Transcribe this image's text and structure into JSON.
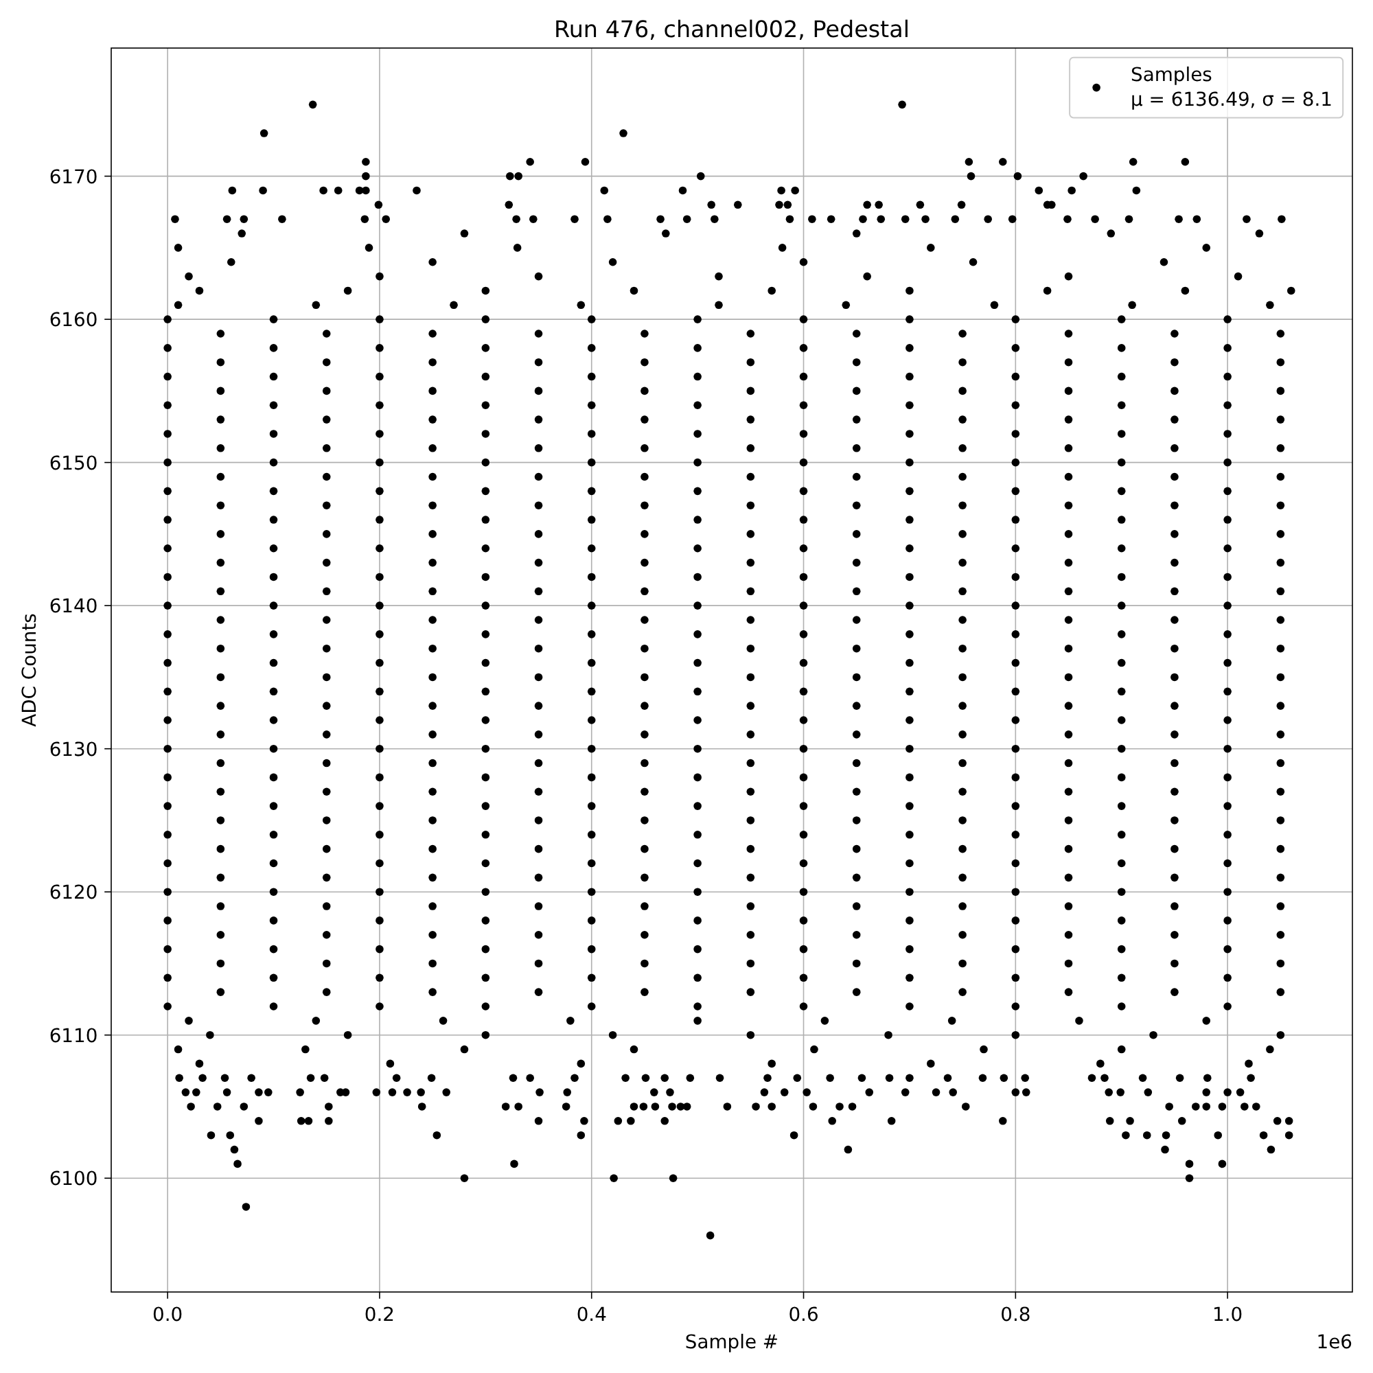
{
  "chart_data": {
    "type": "scatter",
    "title": "Run 476, channel002, Pedestal",
    "xlabel": "Sample #",
    "ylabel": "ADC Counts",
    "annotations": [
      "1e6"
    ],
    "xlim": [
      -0.0532,
      1.1178
    ],
    "ylim": [
      6092.05,
      6178.95
    ],
    "xticks": [
      {
        "value": 0,
        "label": "0.0"
      },
      0.2,
      0.4,
      0.6,
      0.8,
      {
        "value": 1,
        "label": "1.0"
      }
    ],
    "yticks": [
      6100,
      6110,
      6120,
      6130,
      6140,
      6150,
      6160,
      6170
    ],
    "grid": true,
    "legend": "top right",
    "marker": "circle",
    "series": [
      {
        "name": "Samples\nμ = 6136.49, σ = 8.1",
        "color": "#000000",
        "x": [
          0.137,
          0.693,
          0.091,
          0.43,
          0.187,
          0.342,
          0.394,
          0.756,
          0.788,
          0.911,
          0.96,
          0.187,
          0.323,
          0.331,
          0.503,
          0.758,
          0.802,
          0.864,
          0.061,
          0.09,
          0.147,
          0.161,
          0.181,
          0.187,
          0.235,
          0.412,
          0.486,
          0.579,
          0.592,
          0.822,
          0.853,
          0.914,
          0.199,
          0.322,
          0.513,
          0.538,
          0.577,
          0.585,
          0.66,
          0.671,
          0.71,
          0.749,
          0.83,
          0.834,
          0.007,
          0.056,
          0.072,
          0.108,
          0.186,
          0.206,
          0.329,
          0.345,
          0.384,
          0.415,
          0.465,
          0.49,
          0.516,
          0.587,
          0.608,
          0.626,
          0.656,
          0.673,
          0.696,
          0.715,
          0.743,
          0.774,
          0.797,
          0.849,
          0.875,
          0.907,
          0.954,
          0.971,
          1.018,
          1.051,
          0.07,
          0.28,
          0.47,
          0.65,
          0.89,
          1.03,
          0.01,
          0.19,
          0.33,
          0.58,
          0.72,
          0.98,
          0.06,
          0.25,
          0.42,
          0.6,
          0.76,
          0.94,
          0.02,
          0.2,
          0.35,
          0.52,
          0.66,
          0.85,
          1.01,
          0.03,
          0.17,
          0.3,
          0.44,
          0.57,
          0.7,
          0.83,
          0.96,
          1.06,
          0.01,
          0.14,
          0.27,
          0.39,
          0.52,
          0.64,
          0.78,
          0.91,
          1.04,
          0,
          0.1,
          0.2,
          0.3,
          0.4,
          0.5,
          0.6,
          0.7,
          0.8,
          0.9,
          1,
          0.05,
          0.15,
          0.25,
          0.35,
          0.45,
          0.55,
          0.65,
          0.75,
          0.85,
          0.95,
          1.05,
          0,
          0.1,
          0.2,
          0.3,
          0.4,
          0.5,
          0.6,
          0.7,
          0.8,
          0.9,
          1,
          0.05,
          0.15,
          0.25,
          0.35,
          0.45,
          0.55,
          0.65,
          0.75,
          0.85,
          0.95,
          1.05,
          0,
          0.1,
          0.2,
          0.3,
          0.4,
          0.5,
          0.6,
          0.7,
          0.8,
          0.9,
          1,
          0.05,
          0.15,
          0.25,
          0.35,
          0.45,
          0.55,
          0.65,
          0.75,
          0.85,
          0.95,
          1.05,
          0,
          0.1,
          0.2,
          0.3,
          0.4,
          0.5,
          0.6,
          0.7,
          0.8,
          0.9,
          1,
          0.05,
          0.15,
          0.25,
          0.35,
          0.45,
          0.55,
          0.65,
          0.75,
          0.85,
          0.95,
          1.05,
          0,
          0.1,
          0.2,
          0.3,
          0.4,
          0.5,
          0.6,
          0.7,
          0.8,
          0.9,
          1,
          0.05,
          0.15,
          0.25,
          0.35,
          0.45,
          0.55,
          0.65,
          0.75,
          0.85,
          0.95,
          1.05,
          0,
          0.1,
          0.2,
          0.3,
          0.4,
          0.5,
          0.6,
          0.7,
          0.8,
          0.9,
          1,
          0.05,
          0.15,
          0.25,
          0.35,
          0.45,
          0.55,
          0.65,
          0.75,
          0.85,
          0.95,
          1.05,
          0,
          0.1,
          0.2,
          0.3,
          0.4,
          0.5,
          0.6,
          0.7,
          0.8,
          0.9,
          1,
          0.05,
          0.15,
          0.25,
          0.35,
          0.45,
          0.55,
          0.65,
          0.75,
          0.85,
          0.95,
          1.05,
          0,
          0.1,
          0.2,
          0.3,
          0.4,
          0.5,
          0.6,
          0.7,
          0.8,
          0.9,
          1,
          0.05,
          0.15,
          0.25,
          0.35,
          0.45,
          0.55,
          0.65,
          0.75,
          0.85,
          0.95,
          1.05,
          0,
          0.1,
          0.2,
          0.3,
          0.4,
          0.5,
          0.6,
          0.7,
          0.8,
          0.9,
          1,
          0.05,
          0.15,
          0.25,
          0.35,
          0.45,
          0.55,
          0.65,
          0.75,
          0.85,
          0.95,
          1.05,
          0,
          0.1,
          0.2,
          0.3,
          0.4,
          0.5,
          0.6,
          0.7,
          0.8,
          0.9,
          1,
          0.05,
          0.15,
          0.25,
          0.35,
          0.45,
          0.55,
          0.65,
          0.75,
          0.85,
          0.95,
          1.05,
          0,
          0.1,
          0.2,
          0.3,
          0.4,
          0.5,
          0.6,
          0.7,
          0.8,
          0.9,
          1,
          0.05,
          0.15,
          0.25,
          0.35,
          0.45,
          0.55,
          0.65,
          0.75,
          0.85,
          0.95,
          1.05,
          0,
          0.1,
          0.2,
          0.3,
          0.4,
          0.5,
          0.6,
          0.7,
          0.8,
          0.9,
          1,
          0.05,
          0.15,
          0.25,
          0.35,
          0.45,
          0.55,
          0.65,
          0.75,
          0.85,
          0.95,
          1.05,
          0,
          0.1,
          0.2,
          0.3,
          0.4,
          0.5,
          0.6,
          0.7,
          0.8,
          0.9,
          1,
          0.05,
          0.15,
          0.25,
          0.35,
          0.45,
          0.55,
          0.65,
          0.75,
          0.85,
          0.95,
          1.05,
          0,
          0.1,
          0.2,
          0.3,
          0.4,
          0.5,
          0.6,
          0.7,
          0.8,
          0.9,
          1,
          0.05,
          0.15,
          0.25,
          0.35,
          0.45,
          0.55,
          0.65,
          0.75,
          0.85,
          0.95,
          1.05,
          0,
          0.1,
          0.2,
          0.3,
          0.4,
          0.5,
          0.6,
          0.7,
          0.8,
          0.9,
          1,
          0.05,
          0.15,
          0.25,
          0.35,
          0.45,
          0.55,
          0.65,
          0.75,
          0.85,
          0.95,
          1.05,
          0,
          0.1,
          0.2,
          0.3,
          0.4,
          0.5,
          0.6,
          0.7,
          0.8,
          0.9,
          1,
          0.05,
          0.15,
          0.25,
          0.35,
          0.45,
          0.55,
          0.65,
          0.75,
          0.85,
          0.95,
          1.05,
          0,
          0.1,
          0.2,
          0.3,
          0.4,
          0.5,
          0.6,
          0.7,
          0.8,
          0.9,
          1,
          0.05,
          0.15,
          0.25,
          0.35,
          0.45,
          0.55,
          0.65,
          0.75,
          0.85,
          0.95,
          1.05,
          0,
          0.1,
          0.2,
          0.3,
          0.4,
          0.5,
          0.6,
          0.7,
          0.8,
          0.9,
          1,
          0.05,
          0.15,
          0.25,
          0.35,
          0.45,
          0.55,
          0.65,
          0.75,
          0.85,
          0.95,
          1.05,
          0,
          0.1,
          0.2,
          0.3,
          0.4,
          0.5,
          0.6,
          0.7,
          0.8,
          0.9,
          1,
          0.05,
          0.15,
          0.25,
          0.35,
          0.45,
          0.55,
          0.65,
          0.75,
          0.85,
          0.95,
          1.05,
          0,
          0.1,
          0.2,
          0.3,
          0.4,
          0.5,
          0.6,
          0.7,
          0.8,
          0.9,
          1,
          0.05,
          0.15,
          0.25,
          0.35,
          0.45,
          0.55,
          0.65,
          0.75,
          0.85,
          0.95,
          1.05,
          0,
          0.1,
          0.2,
          0.3,
          0.4,
          0.5,
          0.6,
          0.7,
          0.8,
          0.9,
          1,
          0.05,
          0.15,
          0.25,
          0.35,
          0.45,
          0.55,
          0.65,
          0.75,
          0.85,
          0.95,
          1.05,
          0,
          0.1,
          0.2,
          0.3,
          0.4,
          0.5,
          0.6,
          0.7,
          0.8,
          0.9,
          1,
          0.05,
          0.15,
          0.25,
          0.35,
          0.45,
          0.55,
          0.65,
          0.75,
          0.85,
          0.95,
          1.05,
          0,
          0.1,
          0.2,
          0.3,
          0.4,
          0.5,
          0.6,
          0.7,
          0.8,
          0.9,
          1,
          0.05,
          0.15,
          0.25,
          0.35,
          0.45,
          0.55,
          0.65,
          0.75,
          0.85,
          0.95,
          1.05,
          0,
          0.1,
          0.2,
          0.3,
          0.4,
          0.5,
          0.6,
          0.7,
          0.8,
          0.9,
          1,
          0.05,
          0.15,
          0.25,
          0.35,
          0.45,
          0.55,
          0.65,
          0.75,
          0.85,
          0.95,
          1.05,
          0,
          0.1,
          0.2,
          0.3,
          0.4,
          0.5,
          0.6,
          0.7,
          0.8,
          0.9,
          1,
          0.02,
          0.14,
          0.26,
          0.38,
          0.5,
          0.62,
          0.74,
          0.86,
          0.98,
          0.04,
          0.17,
          0.3,
          0.42,
          0.55,
          0.68,
          0.8,
          0.93,
          1.05,
          0.01,
          0.13,
          0.28,
          0.44,
          0.61,
          0.77,
          0.9,
          1.04,
          0.03,
          0.21,
          0.39,
          0.57,
          0.72,
          0.88,
          1.02,
          0.011,
          0.033,
          0.054,
          0.079,
          0.135,
          0.148,
          0.216,
          0.249,
          0.326,
          0.342,
          0.384,
          0.432,
          0.451,
          0.469,
          0.493,
          0.521,
          0.566,
          0.594,
          0.625,
          0.655,
          0.681,
          0.7,
          0.736,
          0.769,
          0.789,
          0.809,
          0.872,
          0.884,
          0.92,
          0.955,
          0.981,
          1.022,
          0.017,
          0.027,
          0.056,
          0.086,
          0.095,
          0.125,
          0.163,
          0.168,
          0.197,
          0.212,
          0.226,
          0.239,
          0.263,
          0.351,
          0.377,
          0.459,
          0.474,
          0.563,
          0.582,
          0.603,
          0.662,
          0.696,
          0.725,
          0.741,
          0.8,
          0.81,
          0.888,
          0.899,
          0.925,
          0.98,
          1,
          1.012,
          0.022,
          0.047,
          0.072,
          0.152,
          0.24,
          0.319,
          0.331,
          0.376,
          0.44,
          0.449,
          0.46,
          0.476,
          0.484,
          0.49,
          0.528,
          0.555,
          0.57,
          0.609,
          0.634,
          0.646,
          0.753,
          0.945,
          0.97,
          0.98,
          0.995,
          1.016,
          1.027,
          0.086,
          0.126,
          0.133,
          0.152,
          0.35,
          0.393,
          0.425,
          0.437,
          0.469,
          0.627,
          0.683,
          0.788,
          0.889,
          0.908,
          0.957,
          1.047,
          1.058,
          0.041,
          0.059,
          0.254,
          0.39,
          0.591,
          0.904,
          0.924,
          0.942,
          0.991,
          1.034,
          1.058,
          0.063,
          0.642,
          0.941,
          1.041,
          0.066,
          0.327,
          0.964,
          0.995,
          0.28,
          0.421,
          0.477,
          0.964,
          0.074,
          0.512
        ],
        "values": [
          6175,
          6175,
          6173,
          6173,
          6171,
          6171,
          6171,
          6171,
          6171,
          6171,
          6171,
          6170,
          6170,
          6170,
          6170,
          6170,
          6170,
          6170,
          6169,
          6169,
          6169,
          6169,
          6169,
          6169,
          6169,
          6169,
          6169,
          6169,
          6169,
          6169,
          6169,
          6169,
          6168,
          6168,
          6168,
          6168,
          6168,
          6168,
          6168,
          6168,
          6168,
          6168,
          6168,
          6168,
          6167,
          6167,
          6167,
          6167,
          6167,
          6167,
          6167,
          6167,
          6167,
          6167,
          6167,
          6167,
          6167,
          6167,
          6167,
          6167,
          6167,
          6167,
          6167,
          6167,
          6167,
          6167,
          6167,
          6167,
          6167,
          6167,
          6167,
          6167,
          6167,
          6167,
          6166,
          6166,
          6166,
          6166,
          6166,
          6166,
          6165,
          6165,
          6165,
          6165,
          6165,
          6165,
          6164,
          6164,
          6164,
          6164,
          6164,
          6164,
          6163,
          6163,
          6163,
          6163,
          6163,
          6163,
          6163,
          6162,
          6162,
          6162,
          6162,
          6162,
          6162,
          6162,
          6162,
          6162,
          6161,
          6161,
          6161,
          6161,
          6161,
          6161,
          6161,
          6161,
          6161,
          6160,
          6160,
          6160,
          6160,
          6160,
          6160,
          6160,
          6160,
          6160,
          6160,
          6160,
          6159,
          6159,
          6159,
          6159,
          6159,
          6159,
          6159,
          6159,
          6159,
          6159,
          6159,
          6158,
          6158,
          6158,
          6158,
          6158,
          6158,
          6158,
          6158,
          6158,
          6158,
          6158,
          6157,
          6157,
          6157,
          6157,
          6157,
          6157,
          6157,
          6157,
          6157,
          6157,
          6157,
          6156,
          6156,
          6156,
          6156,
          6156,
          6156,
          6156,
          6156,
          6156,
          6156,
          6156,
          6155,
          6155,
          6155,
          6155,
          6155,
          6155,
          6155,
          6155,
          6155,
          6155,
          6155,
          6154,
          6154,
          6154,
          6154,
          6154,
          6154,
          6154,
          6154,
          6154,
          6154,
          6154,
          6153,
          6153,
          6153,
          6153,
          6153,
          6153,
          6153,
          6153,
          6153,
          6153,
          6153,
          6152,
          6152,
          6152,
          6152,
          6152,
          6152,
          6152,
          6152,
          6152,
          6152,
          6152,
          6151,
          6151,
          6151,
          6151,
          6151,
          6151,
          6151,
          6151,
          6151,
          6151,
          6151,
          6150,
          6150,
          6150,
          6150,
          6150,
          6150,
          6150,
          6150,
          6150,
          6150,
          6150,
          6149,
          6149,
          6149,
          6149,
          6149,
          6149,
          6149,
          6149,
          6149,
          6149,
          6149,
          6148,
          6148,
          6148,
          6148,
          6148,
          6148,
          6148,
          6148,
          6148,
          6148,
          6148,
          6147,
          6147,
          6147,
          6147,
          6147,
          6147,
          6147,
          6147,
          6147,
          6147,
          6147,
          6146,
          6146,
          6146,
          6146,
          6146,
          6146,
          6146,
          6146,
          6146,
          6146,
          6146,
          6145,
          6145,
          6145,
          6145,
          6145,
          6145,
          6145,
          6145,
          6145,
          6145,
          6145,
          6144,
          6144,
          6144,
          6144,
          6144,
          6144,
          6144,
          6144,
          6144,
          6144,
          6144,
          6143,
          6143,
          6143,
          6143,
          6143,
          6143,
          6143,
          6143,
          6143,
          6143,
          6143,
          6142,
          6142,
          6142,
          6142,
          6142,
          6142,
          6142,
          6142,
          6142,
          6142,
          6142,
          6141,
          6141,
          6141,
          6141,
          6141,
          6141,
          6141,
          6141,
          6141,
          6141,
          6141,
          6140,
          6140,
          6140,
          6140,
          6140,
          6140,
          6140,
          6140,
          6140,
          6140,
          6140,
          6139,
          6139,
          6139,
          6139,
          6139,
          6139,
          6139,
          6139,
          6139,
          6139,
          6139,
          6138,
          6138,
          6138,
          6138,
          6138,
          6138,
          6138,
          6138,
          6138,
          6138,
          6138,
          6137,
          6137,
          6137,
          6137,
          6137,
          6137,
          6137,
          6137,
          6137,
          6137,
          6137,
          6136,
          6136,
          6136,
          6136,
          6136,
          6136,
          6136,
          6136,
          6136,
          6136,
          6136,
          6135,
          6135,
          6135,
          6135,
          6135,
          6135,
          6135,
          6135,
          6135,
          6135,
          6135,
          6134,
          6134,
          6134,
          6134,
          6134,
          6134,
          6134,
          6134,
          6134,
          6134,
          6134,
          6133,
          6133,
          6133,
          6133,
          6133,
          6133,
          6133,
          6133,
          6133,
          6133,
          6133,
          6132,
          6132,
          6132,
          6132,
          6132,
          6132,
          6132,
          6132,
          6132,
          6132,
          6132,
          6131,
          6131,
          6131,
          6131,
          6131,
          6131,
          6131,
          6131,
          6131,
          6131,
          6131,
          6130,
          6130,
          6130,
          6130,
          6130,
          6130,
          6130,
          6130,
          6130,
          6130,
          6130,
          6129,
          6129,
          6129,
          6129,
          6129,
          6129,
          6129,
          6129,
          6129,
          6129,
          6129,
          6128,
          6128,
          6128,
          6128,
          6128,
          6128,
          6128,
          6128,
          6128,
          6128,
          6128,
          6127,
          6127,
          6127,
          6127,
          6127,
          6127,
          6127,
          6127,
          6127,
          6127,
          6127,
          6126,
          6126,
          6126,
          6126,
          6126,
          6126,
          6126,
          6126,
          6126,
          6126,
          6126,
          6125,
          6125,
          6125,
          6125,
          6125,
          6125,
          6125,
          6125,
          6125,
          6125,
          6125,
          6124,
          6124,
          6124,
          6124,
          6124,
          6124,
          6124,
          6124,
          6124,
          6124,
          6124,
          6123,
          6123,
          6123,
          6123,
          6123,
          6123,
          6123,
          6123,
          6123,
          6123,
          6123,
          6122,
          6122,
          6122,
          6122,
          6122,
          6122,
          6122,
          6122,
          6122,
          6122,
          6122,
          6121,
          6121,
          6121,
          6121,
          6121,
          6121,
          6121,
          6121,
          6121,
          6121,
          6121,
          6120,
          6120,
          6120,
          6120,
          6120,
          6120,
          6120,
          6120,
          6120,
          6120,
          6120,
          6119,
          6119,
          6119,
          6119,
          6119,
          6119,
          6119,
          6119,
          6119,
          6119,
          6119,
          6118,
          6118,
          6118,
          6118,
          6118,
          6118,
          6118,
          6118,
          6118,
          6118,
          6118,
          6117,
          6117,
          6117,
          6117,
          6117,
          6117,
          6117,
          6117,
          6117,
          6117,
          6117,
          6116,
          6116,
          6116,
          6116,
          6116,
          6116,
          6116,
          6116,
          6116,
          6116,
          6116,
          6115,
          6115,
          6115,
          6115,
          6115,
          6115,
          6115,
          6115,
          6115,
          6115,
          6115,
          6114,
          6114,
          6114,
          6114,
          6114,
          6114,
          6114,
          6114,
          6114,
          6114,
          6114,
          6113,
          6113,
          6113,
          6113,
          6113,
          6113,
          6113,
          6113,
          6113,
          6113,
          6113,
          6112,
          6112,
          6112,
          6112,
          6112,
          6112,
          6112,
          6112,
          6112,
          6112,
          6112,
          6111,
          6111,
          6111,
          6111,
          6111,
          6111,
          6111,
          6111,
          6111,
          6110,
          6110,
          6110,
          6110,
          6110,
          6110,
          6110,
          6110,
          6110,
          6109,
          6109,
          6109,
          6109,
          6109,
          6109,
          6109,
          6109,
          6108,
          6108,
          6108,
          6108,
          6108,
          6108,
          6108,
          6107,
          6107,
          6107,
          6107,
          6107,
          6107,
          6107,
          6107,
          6107,
          6107,
          6107,
          6107,
          6107,
          6107,
          6107,
          6107,
          6107,
          6107,
          6107,
          6107,
          6107,
          6107,
          6107,
          6107,
          6107,
          6107,
          6107,
          6107,
          6107,
          6107,
          6107,
          6107,
          6106,
          6106,
          6106,
          6106,
          6106,
          6106,
          6106,
          6106,
          6106,
          6106,
          6106,
          6106,
          6106,
          6106,
          6106,
          6106,
          6106,
          6106,
          6106,
          6106,
          6106,
          6106,
          6106,
          6106,
          6106,
          6106,
          6106,
          6106,
          6106,
          6106,
          6106,
          6106,
          6105,
          6105,
          6105,
          6105,
          6105,
          6105,
          6105,
          6105,
          6105,
          6105,
          6105,
          6105,
          6105,
          6105,
          6105,
          6105,
          6105,
          6105,
          6105,
          6105,
          6105,
          6105,
          6105,
          6105,
          6105,
          6105,
          6105,
          6104,
          6104,
          6104,
          6104,
          6104,
          6104,
          6104,
          6104,
          6104,
          6104,
          6104,
          6104,
          6104,
          6104,
          6104,
          6104,
          6104,
          6103,
          6103,
          6103,
          6103,
          6103,
          6103,
          6103,
          6103,
          6103,
          6103,
          6103,
          6102,
          6102,
          6102,
          6102,
          6101,
          6101,
          6101,
          6101,
          6100,
          6100,
          6100,
          6100,
          6098,
          6096
        ]
      }
    ]
  }
}
